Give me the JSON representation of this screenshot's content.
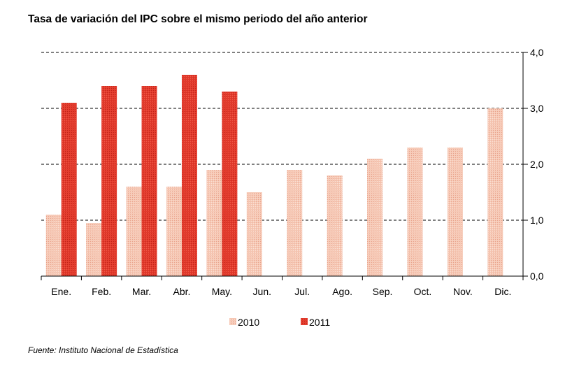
{
  "chart_data": {
    "type": "bar",
    "title": "Tasa de variación del IPC sobre el mismo periodo del año anterior",
    "categories": [
      "Ene.",
      "Feb.",
      "Mar.",
      "Abr.",
      "May.",
      "Jun.",
      "Jul.",
      "Ago.",
      "Sep.",
      "Oct.",
      "Nov.",
      "Dic."
    ],
    "series": [
      {
        "name": "2010",
        "color": "#f2b8a2",
        "values": [
          1.1,
          0.95,
          1.6,
          1.6,
          1.9,
          1.5,
          1.9,
          1.8,
          2.1,
          2.3,
          2.3,
          3.0
        ]
      },
      {
        "name": "2011",
        "color": "#e03a2c",
        "values": [
          3.1,
          3.4,
          3.4,
          3.6,
          3.3,
          null,
          null,
          null,
          null,
          null,
          null,
          null
        ]
      }
    ],
    "yticks": [
      "0,0",
      "1,0",
      "2,0",
      "3,0",
      "4,0"
    ],
    "ylim": [
      0,
      4
    ],
    "y_axis_side": "right",
    "grid": "dashed horizontal",
    "legend_position": "bottom"
  },
  "source": "Fuente: Instituto Nacional de Estadística"
}
